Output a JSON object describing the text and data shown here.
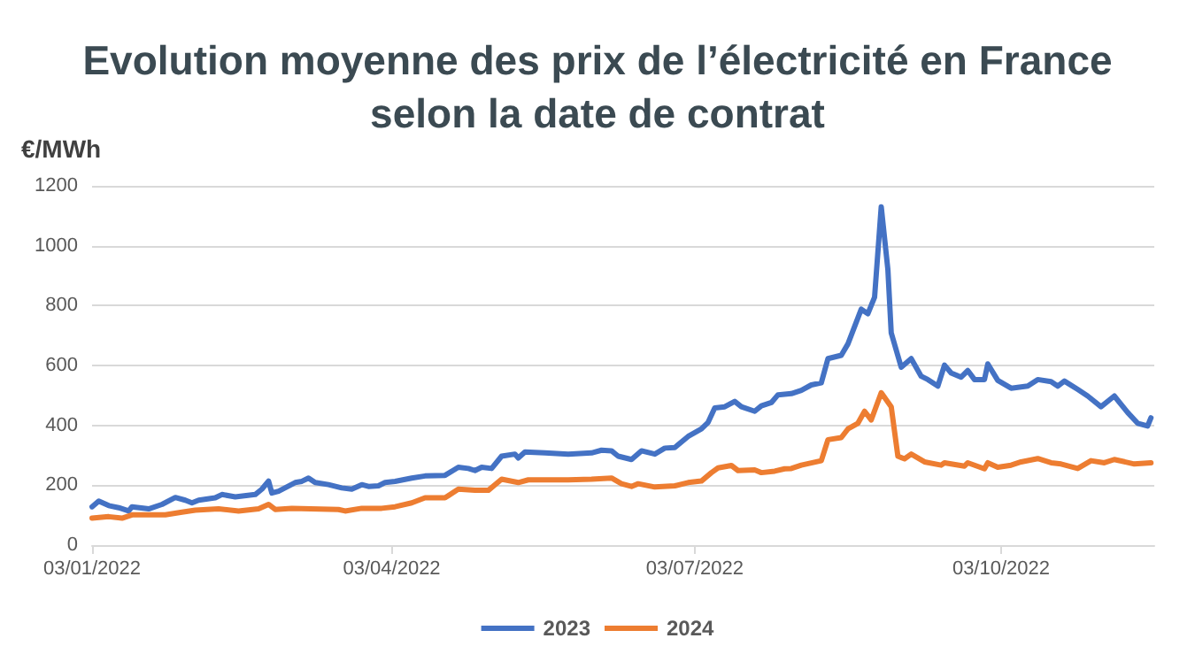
{
  "chart_data": {
    "type": "line",
    "title": "Evolution moyenne des prix de l’électricité en France\nselon la date de contrat",
    "ylabel": "€/MWh",
    "xlim": [
      "2022-01-03",
      "2022-11-18"
    ],
    "xticks": [
      {
        "value": "2022-01-03",
        "label": "03/01/2022"
      },
      {
        "value": "2022-04-03",
        "label": "03/04/2022"
      },
      {
        "value": "2022-07-03",
        "label": "03/07/2022"
      },
      {
        "value": "2022-10-03",
        "label": "03/10/2022"
      }
    ],
    "ylim": [
      0,
      1200
    ],
    "yticks": [
      0,
      200,
      400,
      600,
      800,
      1000,
      1200
    ],
    "grid": "y",
    "legend": "bottom",
    "marker": "none",
    "line_style": "solid",
    "series": [
      {
        "name": "2023",
        "color": "#4472c4",
        "x": [
          "2022-01-03",
          "2022-01-05",
          "2022-01-08",
          "2022-01-11",
          "2022-01-14",
          "2022-01-15",
          "2022-01-20",
          "2022-01-24",
          "2022-01-28",
          "2022-01-31",
          "2022-02-02",
          "2022-02-04",
          "2022-02-09",
          "2022-02-11",
          "2022-02-15",
          "2022-02-21",
          "2022-02-23",
          "2022-02-25",
          "2022-02-26",
          "2022-02-28",
          "2022-03-05",
          "2022-03-07",
          "2022-03-09",
          "2022-03-11",
          "2022-03-15",
          "2022-03-19",
          "2022-03-22",
          "2022-03-25",
          "2022-03-27",
          "2022-03-30",
          "2022-04-01",
          "2022-04-04",
          "2022-04-09",
          "2022-04-13",
          "2022-04-19",
          "2022-04-23",
          "2022-04-26",
          "2022-04-28",
          "2022-04-30",
          "2022-05-03",
          "2022-05-06",
          "2022-05-10",
          "2022-05-11",
          "2022-05-13",
          "2022-05-19",
          "2022-05-26",
          "2022-06-02",
          "2022-06-05",
          "2022-06-08",
          "2022-06-10",
          "2022-06-14",
          "2022-06-17",
          "2022-06-21",
          "2022-06-24",
          "2022-06-27",
          "2022-07-01",
          "2022-07-05",
          "2022-07-07",
          "2022-07-09",
          "2022-07-12",
          "2022-07-15",
          "2022-07-17",
          "2022-07-21",
          "2022-07-23",
          "2022-07-26",
          "2022-07-28",
          "2022-08-01",
          "2022-08-04",
          "2022-08-07",
          "2022-08-10",
          "2022-08-12",
          "2022-08-16",
          "2022-08-18",
          "2022-08-22",
          "2022-08-24",
          "2022-08-26",
          "2022-08-28",
          "2022-08-30",
          "2022-08-31",
          "2022-09-03",
          "2022-09-06",
          "2022-09-09",
          "2022-09-11",
          "2022-09-14",
          "2022-09-16",
          "2022-09-18",
          "2022-09-21",
          "2022-09-23",
          "2022-09-25",
          "2022-09-28",
          "2022-09-29",
          "2022-10-02",
          "2022-10-06",
          "2022-10-11",
          "2022-10-14",
          "2022-10-18",
          "2022-10-20",
          "2022-10-22",
          "2022-10-26",
          "2022-10-29",
          "2022-11-02",
          "2022-11-06",
          "2022-11-10",
          "2022-11-13",
          "2022-11-16",
          "2022-11-17"
        ],
        "values": [
          128,
          147,
          132,
          125,
          114,
          128,
          121,
          136,
          159,
          150,
          141,
          150,
          158,
          169,
          161,
          169,
          187,
          214,
          174,
          180,
          209,
          213,
          224,
          209,
          202,
          191,
          187,
          202,
          196,
          198,
          209,
          213,
          224,
          231,
          233,
          260,
          256,
          249,
          260,
          256,
          297,
          304,
          291,
          311,
          308,
          304,
          308,
          317,
          315,
          297,
          286,
          315,
          304,
          324,
          326,
          363,
          388,
          410,
          458,
          462,
          480,
          462,
          447,
          465,
          476,
          502,
          506,
          517,
          535,
          542,
          623,
          634,
          672,
          788,
          773,
          828,
          1130,
          920,
          709,
          594,
          623,
          564,
          553,
          531,
          601,
          575,
          561,
          583,
          553,
          553,
          605,
          550,
          524,
          531,
          553,
          546,
          531,
          548,
          520,
          498,
          462,
          498,
          443,
          407,
          398,
          425
        ]
      },
      {
        "name": "2024",
        "color": "#ed7d31",
        "x": [
          "2022-01-03",
          "2022-01-08",
          "2022-01-12",
          "2022-01-15",
          "2022-01-25",
          "2022-01-30",
          "2022-02-03",
          "2022-02-10",
          "2022-02-16",
          "2022-02-22",
          "2022-02-25",
          "2022-02-27",
          "2022-03-04",
          "2022-03-18",
          "2022-03-20",
          "2022-03-25",
          "2022-03-31",
          "2022-04-04",
          "2022-04-09",
          "2022-04-13",
          "2022-04-19",
          "2022-04-23",
          "2022-04-28",
          "2022-05-02",
          "2022-05-06",
          "2022-05-11",
          "2022-05-14",
          "2022-05-26",
          "2022-06-02",
          "2022-06-08",
          "2022-06-11",
          "2022-06-14",
          "2022-06-16",
          "2022-06-21",
          "2022-06-27",
          "2022-07-01",
          "2022-07-05",
          "2022-07-08",
          "2022-07-10",
          "2022-07-14",
          "2022-07-16",
          "2022-07-21",
          "2022-07-23",
          "2022-07-27",
          "2022-07-30",
          "2022-08-01",
          "2022-08-04",
          "2022-08-10",
          "2022-08-12",
          "2022-08-16",
          "2022-08-18",
          "2022-08-21",
          "2022-08-23",
          "2022-08-25",
          "2022-08-28",
          "2022-08-31",
          "2022-09-02",
          "2022-09-04",
          "2022-09-06",
          "2022-09-10",
          "2022-09-15",
          "2022-09-16",
          "2022-09-22",
          "2022-09-23",
          "2022-09-28",
          "2022-09-29",
          "2022-10-02",
          "2022-10-06",
          "2022-10-09",
          "2022-10-14",
          "2022-10-18",
          "2022-10-21",
          "2022-10-26",
          "2022-10-30",
          "2022-11-03",
          "2022-11-06",
          "2022-11-12",
          "2022-11-17"
        ],
        "values": [
          90,
          95,
          90,
          101,
          101,
          110,
          117,
          121,
          114,
          121,
          136,
          119,
          123,
          119,
          114,
          123,
          123,
          128,
          141,
          158,
          158,
          187,
          183,
          183,
          220,
          209,
          218,
          218,
          220,
          224,
          205,
          196,
          205,
          194,
          198,
          209,
          214,
          242,
          258,
          266,
          249,
          251,
          242,
          247,
          255,
          256,
          267,
          282,
          352,
          359,
          388,
          407,
          447,
          418,
          509,
          462,
          297,
          288,
          304,
          278,
          267,
          275,
          264,
          275,
          255,
          275,
          260,
          267,
          278,
          289,
          275,
          271,
          256,
          282,
          275,
          286,
          271,
          275
        ]
      }
    ]
  }
}
